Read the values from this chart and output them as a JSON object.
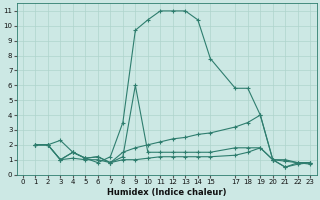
{
  "xlabel": "Humidex (Indice chaleur)",
  "bg_color": "#cce8e4",
  "line_color": "#2e7d6e",
  "grid_color": "#afd4cc",
  "xlim": [
    -0.5,
    23.5
  ],
  "ylim": [
    0,
    11.5
  ],
  "xticks": [
    0,
    1,
    2,
    3,
    4,
    5,
    6,
    7,
    8,
    9,
    10,
    11,
    12,
    13,
    14,
    15,
    17,
    18,
    19,
    20,
    21,
    22,
    23
  ],
  "yticks": [
    0,
    1,
    2,
    3,
    4,
    5,
    6,
    7,
    8,
    9,
    10,
    11
  ],
  "lines": [
    {
      "x": [
        1,
        2,
        3,
        4,
        5,
        6,
        7,
        8,
        9,
        10,
        11,
        12,
        13,
        14,
        15,
        17,
        18,
        19,
        20,
        21,
        22,
        23
      ],
      "y": [
        2,
        2,
        2.3,
        1.5,
        1.1,
        0.8,
        1.2,
        3.5,
        9.7,
        10.4,
        11,
        11,
        11,
        10.4,
        7.8,
        5.8,
        5.8,
        4.0,
        1.0,
        0.5,
        0.7,
        0.8
      ]
    },
    {
      "x": [
        1,
        2,
        3,
        4,
        5,
        6,
        7,
        8,
        9,
        10,
        11,
        12,
        13,
        14,
        15,
        17,
        18,
        19,
        20,
        21,
        22,
        23
      ],
      "y": [
        2,
        2,
        1.0,
        1.5,
        1.1,
        1.2,
        0.8,
        1.5,
        1.8,
        2.0,
        2.2,
        2.4,
        2.5,
        2.7,
        2.8,
        3.2,
        3.5,
        4.0,
        1.0,
        1.0,
        0.8,
        0.8
      ]
    },
    {
      "x": [
        1,
        2,
        3,
        4,
        5,
        6,
        7,
        8,
        9,
        10,
        11,
        12,
        13,
        14,
        15,
        17,
        18,
        19,
        20,
        21,
        22,
        23
      ],
      "y": [
        2,
        2,
        1.0,
        1.5,
        1.1,
        1.2,
        0.8,
        1.2,
        6.0,
        1.5,
        1.5,
        1.5,
        1.5,
        1.5,
        1.5,
        1.8,
        1.8,
        1.8,
        1.0,
        0.9,
        0.8,
        0.7
      ]
    },
    {
      "x": [
        1,
        2,
        3,
        4,
        5,
        6,
        7,
        8,
        9,
        10,
        11,
        12,
        13,
        14,
        15,
        17,
        18,
        19,
        20,
        21,
        22,
        23
      ],
      "y": [
        2,
        2,
        1.0,
        1.1,
        1.0,
        1.0,
        0.8,
        1.0,
        1.0,
        1.1,
        1.2,
        1.2,
        1.2,
        1.2,
        1.2,
        1.3,
        1.5,
        1.8,
        1.0,
        0.5,
        0.8,
        0.8
      ]
    }
  ]
}
